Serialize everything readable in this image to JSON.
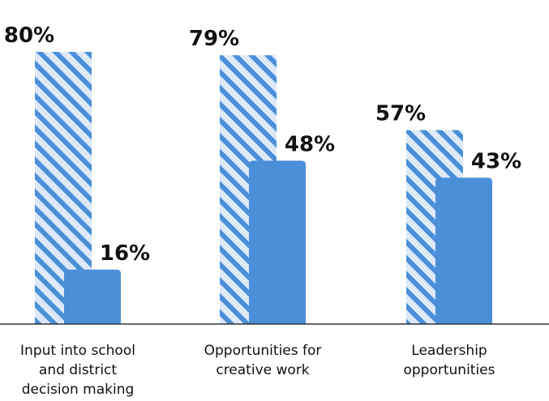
{
  "chart_data": {
    "type": "bar",
    "categories": [
      [
        "Input into school",
        "and district",
        "decision making"
      ],
      [
        "Opportunities for",
        "creative work"
      ],
      [
        "Leadership",
        "opportunities"
      ]
    ],
    "series": [
      {
        "values": [
          80,
          79,
          57
        ],
        "labels": [
          "80%",
          "79%",
          "57%"
        ],
        "style": "hatched",
        "color": "#4a8fd8"
      },
      {
        "values": [
          16,
          48,
          43
        ],
        "labels": [
          "16%",
          "48%",
          "43%"
        ],
        "style": "solid",
        "color": "#4a8fd8"
      }
    ],
    "ylim": [
      0,
      80
    ],
    "grid": false,
    "title": "",
    "xlabel": "",
    "ylabel": ""
  }
}
